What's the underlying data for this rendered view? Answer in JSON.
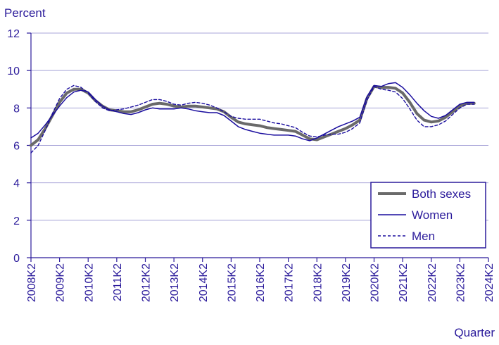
{
  "chart_data": {
    "type": "line",
    "title": "",
    "ylabel": "Percent",
    "xlabel": "Quarter",
    "ylim": [
      0,
      12
    ],
    "yticks": [
      0,
      2,
      4,
      6,
      8,
      10,
      12
    ],
    "xlim": [
      2008.25,
      2024.25
    ],
    "xticks": [
      {
        "label": "2008K2",
        "x": 2008.25
      },
      {
        "label": "2009K2",
        "x": 2009.25
      },
      {
        "label": "2010K2",
        "x": 2010.25
      },
      {
        "label": "2011K2",
        "x": 2011.25
      },
      {
        "label": "2012K2",
        "x": 2012.25
      },
      {
        "label": "2013K2",
        "x": 2013.25
      },
      {
        "label": "2014K2",
        "x": 2014.25
      },
      {
        "label": "2015K2",
        "x": 2015.25
      },
      {
        "label": "2016K2",
        "x": 2016.25
      },
      {
        "label": "2017K2",
        "x": 2017.25
      },
      {
        "label": "2018K2",
        "x": 2018.25
      },
      {
        "label": "2019K2",
        "x": 2019.25
      },
      {
        "label": "2020K2",
        "x": 2020.25
      },
      {
        "label": "2021K2",
        "x": 2021.25
      },
      {
        "label": "2022K2",
        "x": 2022.25
      },
      {
        "label": "2023K2",
        "x": 2023.25
      },
      {
        "label": "2024K2",
        "x": 2024.25
      }
    ],
    "grid": true,
    "legend_position": "bottom-right",
    "series": [
      {
        "name": "Both sexes",
        "color": "#6a6a6a",
        "style": "thick",
        "points": [
          [
            2008.25,
            6.0
          ],
          [
            2008.5,
            6.3
          ],
          [
            2008.75,
            6.9
          ],
          [
            2009.0,
            7.6
          ],
          [
            2009.25,
            8.3
          ],
          [
            2009.5,
            8.8
          ],
          [
            2009.75,
            9.0
          ],
          [
            2010.0,
            9.0
          ],
          [
            2010.25,
            8.8
          ],
          [
            2010.5,
            8.4
          ],
          [
            2010.75,
            8.1
          ],
          [
            2011.0,
            7.9
          ],
          [
            2011.25,
            7.85
          ],
          [
            2011.5,
            7.8
          ],
          [
            2011.75,
            7.8
          ],
          [
            2012.0,
            7.9
          ],
          [
            2012.25,
            8.05
          ],
          [
            2012.5,
            8.2
          ],
          [
            2012.75,
            8.25
          ],
          [
            2013.0,
            8.2
          ],
          [
            2013.25,
            8.1
          ],
          [
            2013.5,
            8.05
          ],
          [
            2013.75,
            8.1
          ],
          [
            2014.0,
            8.1
          ],
          [
            2014.25,
            8.05
          ],
          [
            2014.5,
            8.0
          ],
          [
            2014.75,
            7.95
          ],
          [
            2015.0,
            7.8
          ],
          [
            2015.25,
            7.5
          ],
          [
            2015.5,
            7.25
          ],
          [
            2015.75,
            7.15
          ],
          [
            2016.0,
            7.1
          ],
          [
            2016.25,
            7.05
          ],
          [
            2016.5,
            6.95
          ],
          [
            2016.75,
            6.9
          ],
          [
            2017.0,
            6.85
          ],
          [
            2017.25,
            6.8
          ],
          [
            2017.5,
            6.75
          ],
          [
            2017.75,
            6.55
          ],
          [
            2018.0,
            6.35
          ],
          [
            2018.25,
            6.3
          ],
          [
            2018.5,
            6.45
          ],
          [
            2018.75,
            6.6
          ],
          [
            2019.0,
            6.75
          ],
          [
            2019.25,
            6.9
          ],
          [
            2019.5,
            7.1
          ],
          [
            2019.75,
            7.35
          ],
          [
            2020.0,
            8.5
          ],
          [
            2020.25,
            9.15
          ],
          [
            2020.5,
            9.1
          ],
          [
            2020.75,
            9.1
          ],
          [
            2021.0,
            9.05
          ],
          [
            2021.25,
            8.8
          ],
          [
            2021.5,
            8.3
          ],
          [
            2021.75,
            7.7
          ],
          [
            2022.0,
            7.35
          ],
          [
            2022.25,
            7.25
          ],
          [
            2022.5,
            7.3
          ],
          [
            2022.75,
            7.5
          ],
          [
            2023.0,
            7.8
          ],
          [
            2023.25,
            8.1
          ],
          [
            2023.5,
            8.25
          ],
          [
            2023.75,
            8.25
          ]
        ]
      },
      {
        "name": "Women",
        "color": "#1a0d9e",
        "style": "solid",
        "points": [
          [
            2008.25,
            6.4
          ],
          [
            2008.5,
            6.65
          ],
          [
            2008.75,
            7.1
          ],
          [
            2009.0,
            7.6
          ],
          [
            2009.25,
            8.1
          ],
          [
            2009.5,
            8.55
          ],
          [
            2009.75,
            8.85
          ],
          [
            2010.0,
            8.95
          ],
          [
            2010.25,
            8.85
          ],
          [
            2010.5,
            8.45
          ],
          [
            2010.75,
            8.1
          ],
          [
            2011.0,
            7.9
          ],
          [
            2011.25,
            7.8
          ],
          [
            2011.5,
            7.7
          ],
          [
            2011.75,
            7.65
          ],
          [
            2012.0,
            7.75
          ],
          [
            2012.25,
            7.9
          ],
          [
            2012.5,
            8.0
          ],
          [
            2012.75,
            7.95
          ],
          [
            2013.0,
            7.95
          ],
          [
            2013.25,
            7.95
          ],
          [
            2013.5,
            8.0
          ],
          [
            2013.75,
            7.95
          ],
          [
            2014.0,
            7.85
          ],
          [
            2014.25,
            7.8
          ],
          [
            2014.5,
            7.75
          ],
          [
            2014.75,
            7.75
          ],
          [
            2015.0,
            7.6
          ],
          [
            2015.25,
            7.3
          ],
          [
            2015.5,
            7.0
          ],
          [
            2015.75,
            6.85
          ],
          [
            2016.0,
            6.75
          ],
          [
            2016.25,
            6.65
          ],
          [
            2016.5,
            6.6
          ],
          [
            2016.75,
            6.55
          ],
          [
            2017.0,
            6.55
          ],
          [
            2017.25,
            6.55
          ],
          [
            2017.5,
            6.5
          ],
          [
            2017.75,
            6.35
          ],
          [
            2018.0,
            6.25
          ],
          [
            2018.25,
            6.4
          ],
          [
            2018.5,
            6.6
          ],
          [
            2018.75,
            6.8
          ],
          [
            2019.0,
            7.0
          ],
          [
            2019.25,
            7.15
          ],
          [
            2019.5,
            7.3
          ],
          [
            2019.75,
            7.5
          ],
          [
            2020.0,
            8.6
          ],
          [
            2020.25,
            9.2
          ],
          [
            2020.5,
            9.15
          ],
          [
            2020.75,
            9.3
          ],
          [
            2021.0,
            9.35
          ],
          [
            2021.25,
            9.1
          ],
          [
            2021.5,
            8.7
          ],
          [
            2021.75,
            8.25
          ],
          [
            2022.0,
            7.85
          ],
          [
            2022.25,
            7.55
          ],
          [
            2022.5,
            7.45
          ],
          [
            2022.75,
            7.6
          ],
          [
            2023.0,
            7.9
          ],
          [
            2023.25,
            8.2
          ],
          [
            2023.5,
            8.3
          ],
          [
            2023.75,
            8.3
          ]
        ]
      },
      {
        "name": "Men",
        "color": "#1a0d9e",
        "style": "dashed",
        "points": [
          [
            2008.25,
            5.6
          ],
          [
            2008.5,
            6.0
          ],
          [
            2008.75,
            6.8
          ],
          [
            2009.0,
            7.7
          ],
          [
            2009.25,
            8.5
          ],
          [
            2009.5,
            9.0
          ],
          [
            2009.75,
            9.2
          ],
          [
            2010.0,
            9.1
          ],
          [
            2010.25,
            8.8
          ],
          [
            2010.5,
            8.35
          ],
          [
            2010.75,
            8.0
          ],
          [
            2011.0,
            7.85
          ],
          [
            2011.25,
            7.9
          ],
          [
            2011.5,
            7.95
          ],
          [
            2011.75,
            8.05
          ],
          [
            2012.0,
            8.15
          ],
          [
            2012.25,
            8.3
          ],
          [
            2012.5,
            8.45
          ],
          [
            2012.75,
            8.45
          ],
          [
            2013.0,
            8.35
          ],
          [
            2013.25,
            8.2
          ],
          [
            2013.5,
            8.15
          ],
          [
            2013.75,
            8.25
          ],
          [
            2014.0,
            8.3
          ],
          [
            2014.25,
            8.25
          ],
          [
            2014.5,
            8.15
          ],
          [
            2014.75,
            8.0
          ],
          [
            2015.0,
            7.8
          ],
          [
            2015.25,
            7.55
          ],
          [
            2015.5,
            7.45
          ],
          [
            2015.75,
            7.4
          ],
          [
            2016.0,
            7.4
          ],
          [
            2016.25,
            7.4
          ],
          [
            2016.5,
            7.3
          ],
          [
            2016.75,
            7.2
          ],
          [
            2017.0,
            7.15
          ],
          [
            2017.25,
            7.05
          ],
          [
            2017.5,
            6.95
          ],
          [
            2017.75,
            6.7
          ],
          [
            2018.0,
            6.5
          ],
          [
            2018.25,
            6.45
          ],
          [
            2018.5,
            6.55
          ],
          [
            2018.75,
            6.6
          ],
          [
            2019.0,
            6.6
          ],
          [
            2019.25,
            6.7
          ],
          [
            2019.5,
            6.9
          ],
          [
            2019.75,
            7.2
          ],
          [
            2020.0,
            8.4
          ],
          [
            2020.25,
            9.15
          ],
          [
            2020.5,
            9.0
          ],
          [
            2020.75,
            8.95
          ],
          [
            2021.0,
            8.85
          ],
          [
            2021.25,
            8.5
          ],
          [
            2021.5,
            7.95
          ],
          [
            2021.75,
            7.35
          ],
          [
            2022.0,
            7.0
          ],
          [
            2022.25,
            7.0
          ],
          [
            2022.5,
            7.1
          ],
          [
            2022.75,
            7.3
          ],
          [
            2023.0,
            7.65
          ],
          [
            2023.25,
            8.0
          ],
          [
            2023.5,
            8.2
          ],
          [
            2023.75,
            8.2
          ]
        ]
      }
    ]
  }
}
